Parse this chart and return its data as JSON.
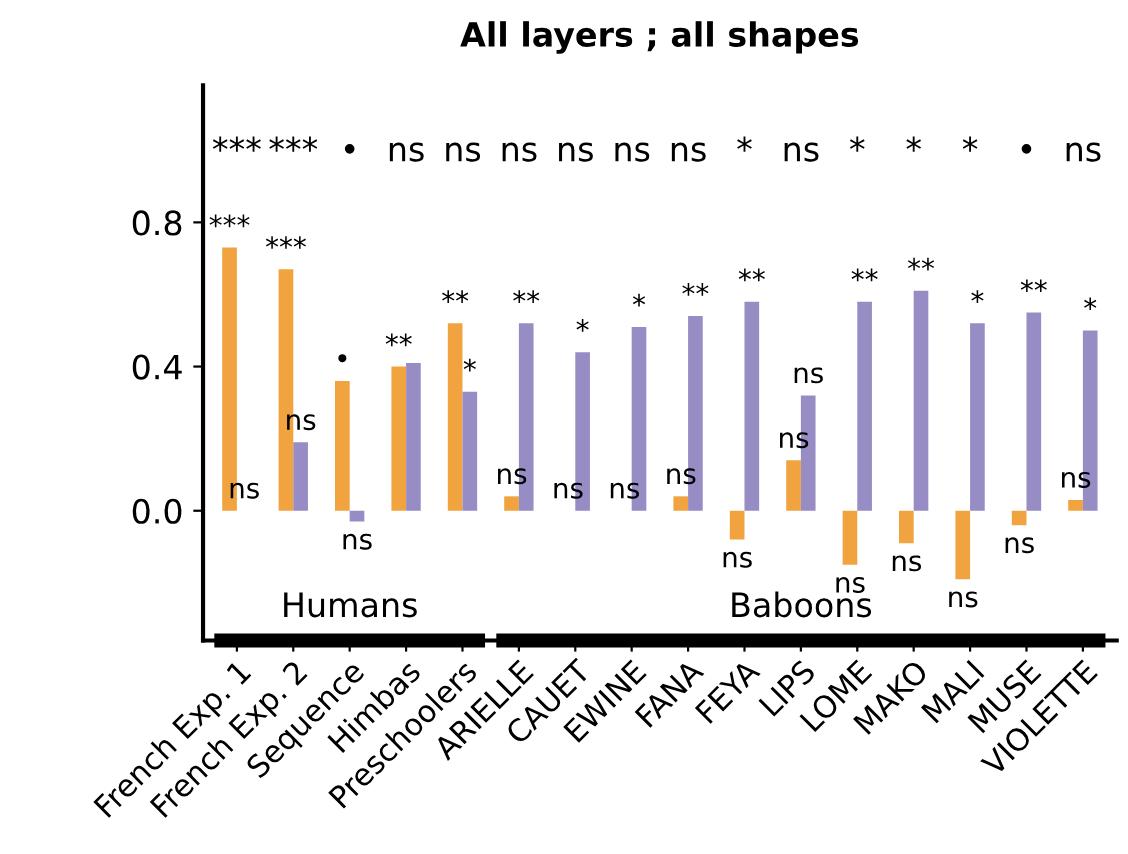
{
  "chart_data": {
    "type": "bar",
    "title": "All layers ; all shapes",
    "categories": [
      "French Exp. 1",
      "French Exp. 2",
      "Sequence",
      "Himbas",
      "Preschoolers",
      "ARIELLE",
      "CAUET",
      "EWINE",
      "FANA",
      "FEYA",
      "LIPS",
      "LOME",
      "MAKO",
      "MALI",
      "MUSE",
      "VIOLETTE"
    ],
    "series": [
      {
        "color": "#f0a33e",
        "values": [
          0.73,
          0.67,
          0.36,
          0.4,
          0.52,
          0.04,
          0.0,
          0.0,
          0.04,
          -0.08,
          0.14,
          -0.15,
          -0.09,
          -0.19,
          -0.04,
          0.03
        ],
        "value_labels": [
          "***",
          "***",
          "•",
          "**",
          "**",
          "ns",
          "ns",
          "ns",
          "ns",
          "ns",
          "ns",
          "ns",
          "ns",
          "ns",
          "ns",
          "ns"
        ]
      },
      {
        "color": "#978dc4",
        "values": [
          0.0,
          0.19,
          -0.03,
          0.41,
          0.33,
          0.52,
          0.44,
          0.51,
          0.54,
          0.58,
          0.32,
          0.58,
          0.61,
          0.52,
          0.55,
          0.5
        ],
        "value_labels": [
          "ns",
          "ns",
          "ns",
          null,
          "*",
          "**",
          "*",
          "*",
          "**",
          "**",
          "ns",
          "**",
          "**",
          "*",
          "**",
          "*"
        ]
      }
    ],
    "ylim": [
      -0.36,
      1.18
    ],
    "yticks": [
      {
        "value": 0,
        "label": "0.0"
      },
      {
        "value": 0.4,
        "label": "0.4"
      },
      {
        "value": 0.8,
        "label": "0.8"
      }
    ],
    "grid": false,
    "legend": false,
    "annotations": [
      "***",
      "***",
      "•",
      "ns",
      "ns",
      "ns",
      "ns",
      "ns",
      "ns",
      "*",
      "ns",
      "*",
      "*",
      "*",
      "•",
      "ns",
      "Humans",
      "Baboons"
    ]
  }
}
